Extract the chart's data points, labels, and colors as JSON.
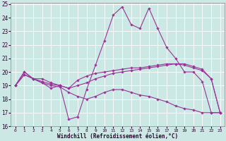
{
  "xlabel": "Windchill (Refroidissement éolien,°C)",
  "bg_color": "#cce8e4",
  "grid_color": "#ffffff",
  "line_color": "#993399",
  "ylim": [
    16,
    25
  ],
  "xlim": [
    -0.5,
    23.5
  ],
  "yticks": [
    16,
    17,
    18,
    19,
    20,
    21,
    22,
    23,
    24,
    25
  ],
  "xticks": [
    0,
    1,
    2,
    3,
    4,
    5,
    6,
    7,
    8,
    9,
    10,
    11,
    12,
    13,
    14,
    15,
    16,
    17,
    18,
    19,
    20,
    21,
    22,
    23
  ],
  "series": [
    {
      "x": [
        0,
        1,
        2,
        3,
        4,
        5,
        6,
        7,
        8,
        9,
        10,
        11,
        12,
        13,
        14,
        15,
        16,
        17,
        18,
        19,
        20,
        21,
        22,
        23
      ],
      "y": [
        19.0,
        20.0,
        19.5,
        19.5,
        19.2,
        19.0,
        16.5,
        16.7,
        18.7,
        20.5,
        22.3,
        24.2,
        24.8,
        23.5,
        23.2,
        24.7,
        23.2,
        21.8,
        21.0,
        20.0,
        20.0,
        19.3,
        17.0,
        17.0
      ]
    },
    {
      "x": [
        0,
        1,
        2,
        3,
        4,
        5,
        6,
        7,
        8,
        9,
        10,
        11,
        12,
        13,
        14,
        15,
        16,
        17,
        18,
        19,
        20,
        21,
        22,
        23
      ],
      "y": [
        19.0,
        19.8,
        19.5,
        19.2,
        19.0,
        18.9,
        18.5,
        18.2,
        18.0,
        18.2,
        18.5,
        18.7,
        18.7,
        18.5,
        18.3,
        18.2,
        18.0,
        17.8,
        17.5,
        17.3,
        17.2,
        17.0,
        17.0,
        17.0
      ]
    },
    {
      "x": [
        0,
        1,
        2,
        3,
        4,
        5,
        6,
        7,
        8,
        9,
        10,
        11,
        12,
        13,
        14,
        15,
        16,
        17,
        18,
        19,
        20,
        21,
        22,
        23
      ],
      "y": [
        19.0,
        19.8,
        19.5,
        19.3,
        19.1,
        19.0,
        18.8,
        19.4,
        19.7,
        19.9,
        20.0,
        20.1,
        20.2,
        20.3,
        20.3,
        20.4,
        20.5,
        20.6,
        20.6,
        20.5,
        20.3,
        20.1,
        19.5,
        17.0
      ]
    },
    {
      "x": [
        0,
        1,
        2,
        3,
        4,
        5,
        6,
        7,
        8,
        9,
        10,
        11,
        12,
        13,
        14,
        15,
        16,
        17,
        18,
        19,
        20,
        21,
        22,
        23
      ],
      "y": [
        19.0,
        20.0,
        19.5,
        19.2,
        18.8,
        19.0,
        18.8,
        19.0,
        19.2,
        19.5,
        19.7,
        19.9,
        20.0,
        20.1,
        20.2,
        20.3,
        20.4,
        20.5,
        20.6,
        20.6,
        20.4,
        20.2,
        19.5,
        17.0
      ]
    }
  ]
}
